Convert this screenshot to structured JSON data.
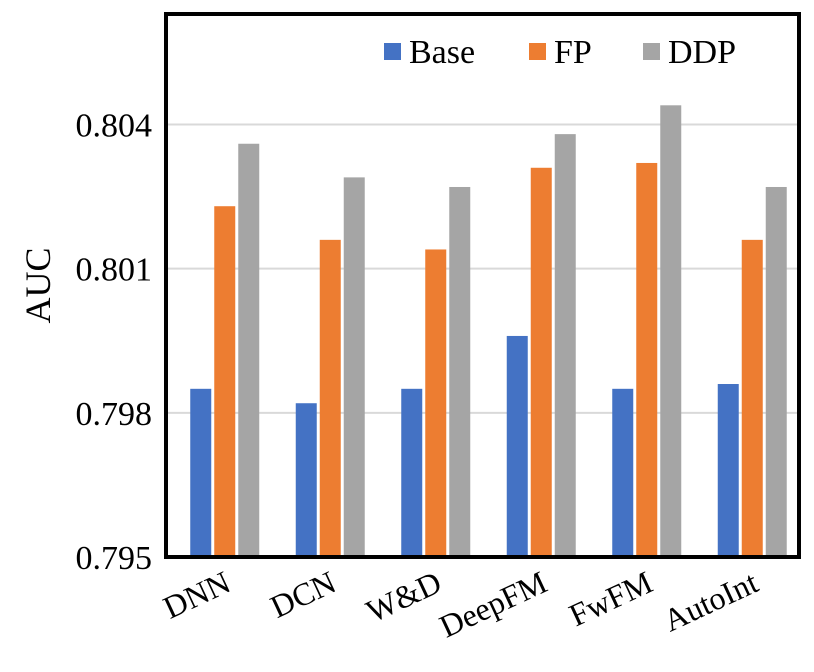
{
  "chart_data": {
    "type": "bar",
    "title": "",
    "xlabel": "",
    "ylabel": "AUC",
    "ylim": [
      0.795,
      0.8063
    ],
    "yticks": [
      0.795,
      0.798,
      0.801,
      0.804
    ],
    "ytick_labels": [
      "0.795",
      "0.798",
      "0.801",
      "0.804"
    ],
    "grid": true,
    "legend_position": "top-right",
    "categories": [
      "DNN",
      "DCN",
      "W&D",
      "DeepFM",
      "FwFM",
      "AutoInt"
    ],
    "series": [
      {
        "name": "Base",
        "color": "#4472C4",
        "values": [
          0.7985,
          0.7982,
          0.7985,
          0.7996,
          0.7985,
          0.7986
        ]
      },
      {
        "name": "FP",
        "color": "#ED7D31",
        "values": [
          0.8023,
          0.8016,
          0.8014,
          0.8031,
          0.8032,
          0.8016
        ]
      },
      {
        "name": "DDP",
        "color": "#A5A5A5",
        "values": [
          0.8036,
          0.8029,
          0.8027,
          0.8038,
          0.8044,
          0.8027
        ]
      }
    ]
  }
}
